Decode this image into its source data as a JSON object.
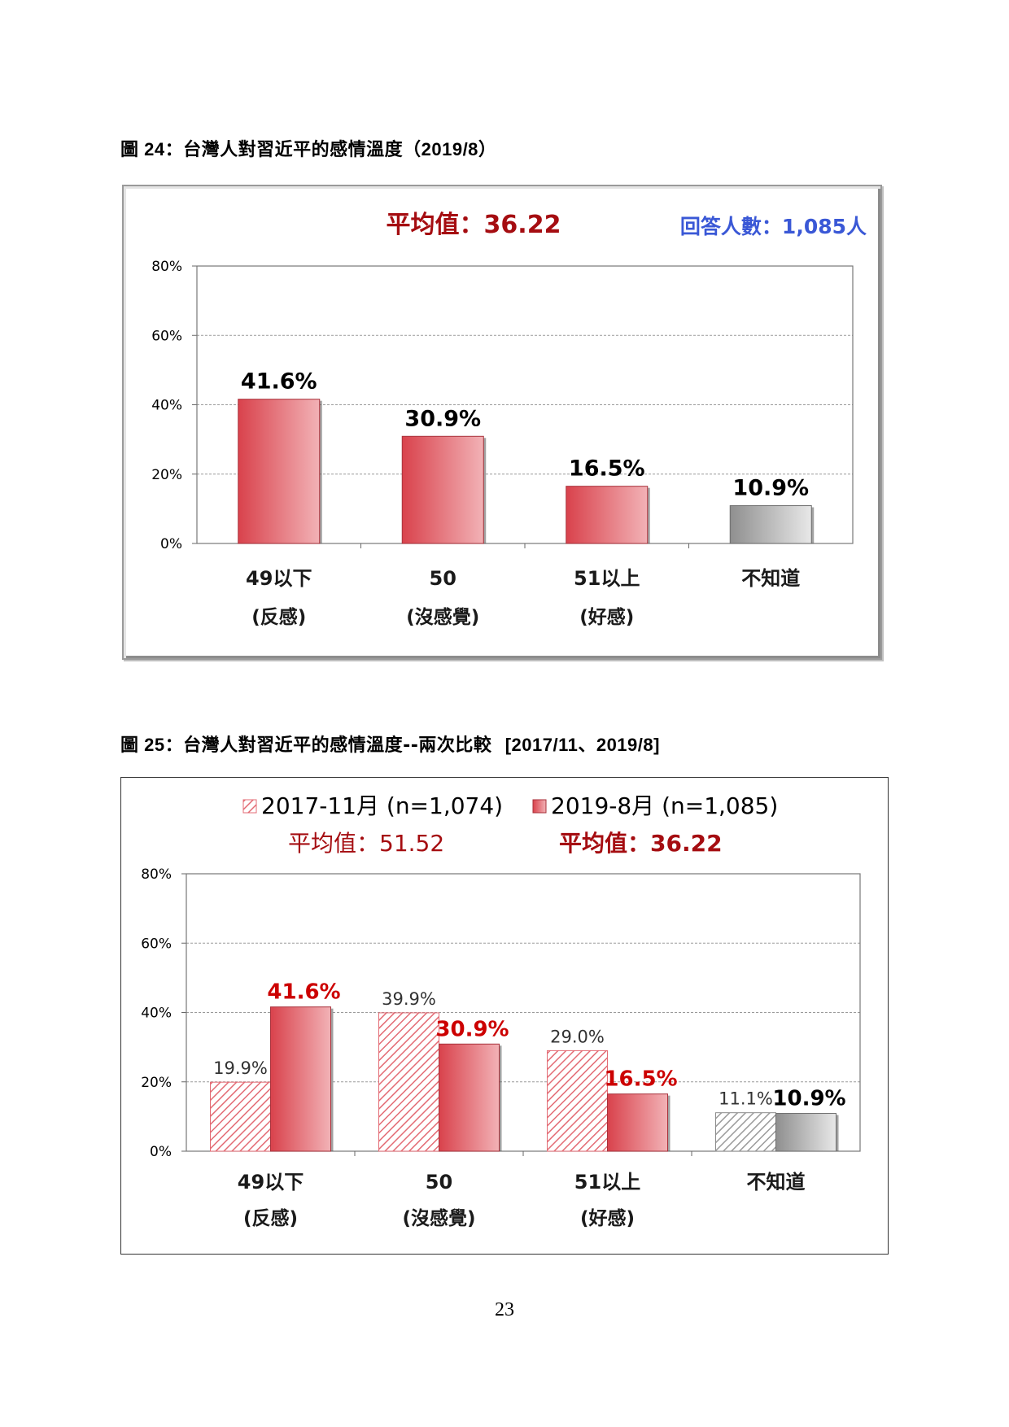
{
  "figure24": {
    "label": "圖 24",
    "title": "台灣人對習近平的感情溫度（",
    "title_date": "2019/8",
    "title_close": "）"
  },
  "figure25": {
    "label": "圖 25",
    "title": "台灣人對習近平的感情溫度--兩次比較",
    "title_dates": "[2017/11、2019/8]"
  },
  "page_number": "23",
  "colors": {
    "dark_red": "#a50d11",
    "bright_red": "#cc0000",
    "blue": "#3a58d6",
    "bar_red_dark": "#d9424c",
    "bar_red_light": "#f2b2b6",
    "bar_gray_dark": "#8f8f8f",
    "bar_gray_light": "#e8e8e8"
  },
  "chart_data": [
    {
      "type": "bar",
      "average_label": "平均值：36.22",
      "respondents_label": "回答人數：1,085人",
      "categories": [
        [
          "49以下",
          "(反感)"
        ],
        [
          "50",
          "(沒感覺)"
        ],
        [
          "51以上",
          "(好感)"
        ],
        [
          "不知道",
          ""
        ]
      ],
      "values": [
        41.6,
        30.9,
        16.5,
        10.9
      ],
      "value_labels": [
        "41.6%",
        "30.9%",
        "16.5%",
        "10.9%"
      ],
      "yticks": [
        "0%",
        "20%",
        "40%",
        "60%",
        "80%"
      ],
      "ylim": [
        0,
        80
      ],
      "grid": true
    },
    {
      "type": "bar",
      "categories": [
        [
          "49以下",
          "(反感)"
        ],
        [
          "50",
          "(沒感覺)"
        ],
        [
          "51以上",
          "(好感)"
        ],
        [
          "不知道",
          ""
        ]
      ],
      "series": [
        {
          "name": "2017-11月 (n=1,074)",
          "average_label": "平均值：51.52",
          "values": [
            19.9,
            39.9,
            29.0,
            11.1
          ],
          "value_labels": [
            "19.9%",
            "39.9%",
            "29.0%",
            "11.1%"
          ]
        },
        {
          "name": "2019-8月 (n=1,085)",
          "average_label": "平均值：36.22",
          "values": [
            41.6,
            30.9,
            16.5,
            10.9
          ],
          "value_labels": [
            "41.6%",
            "30.9%",
            "16.5%",
            "10.9%"
          ]
        }
      ],
      "yticks": [
        "0%",
        "20%",
        "40%",
        "60%",
        "80%"
      ],
      "ylim": [
        0,
        80
      ],
      "legend": "top",
      "grid": true
    }
  ]
}
